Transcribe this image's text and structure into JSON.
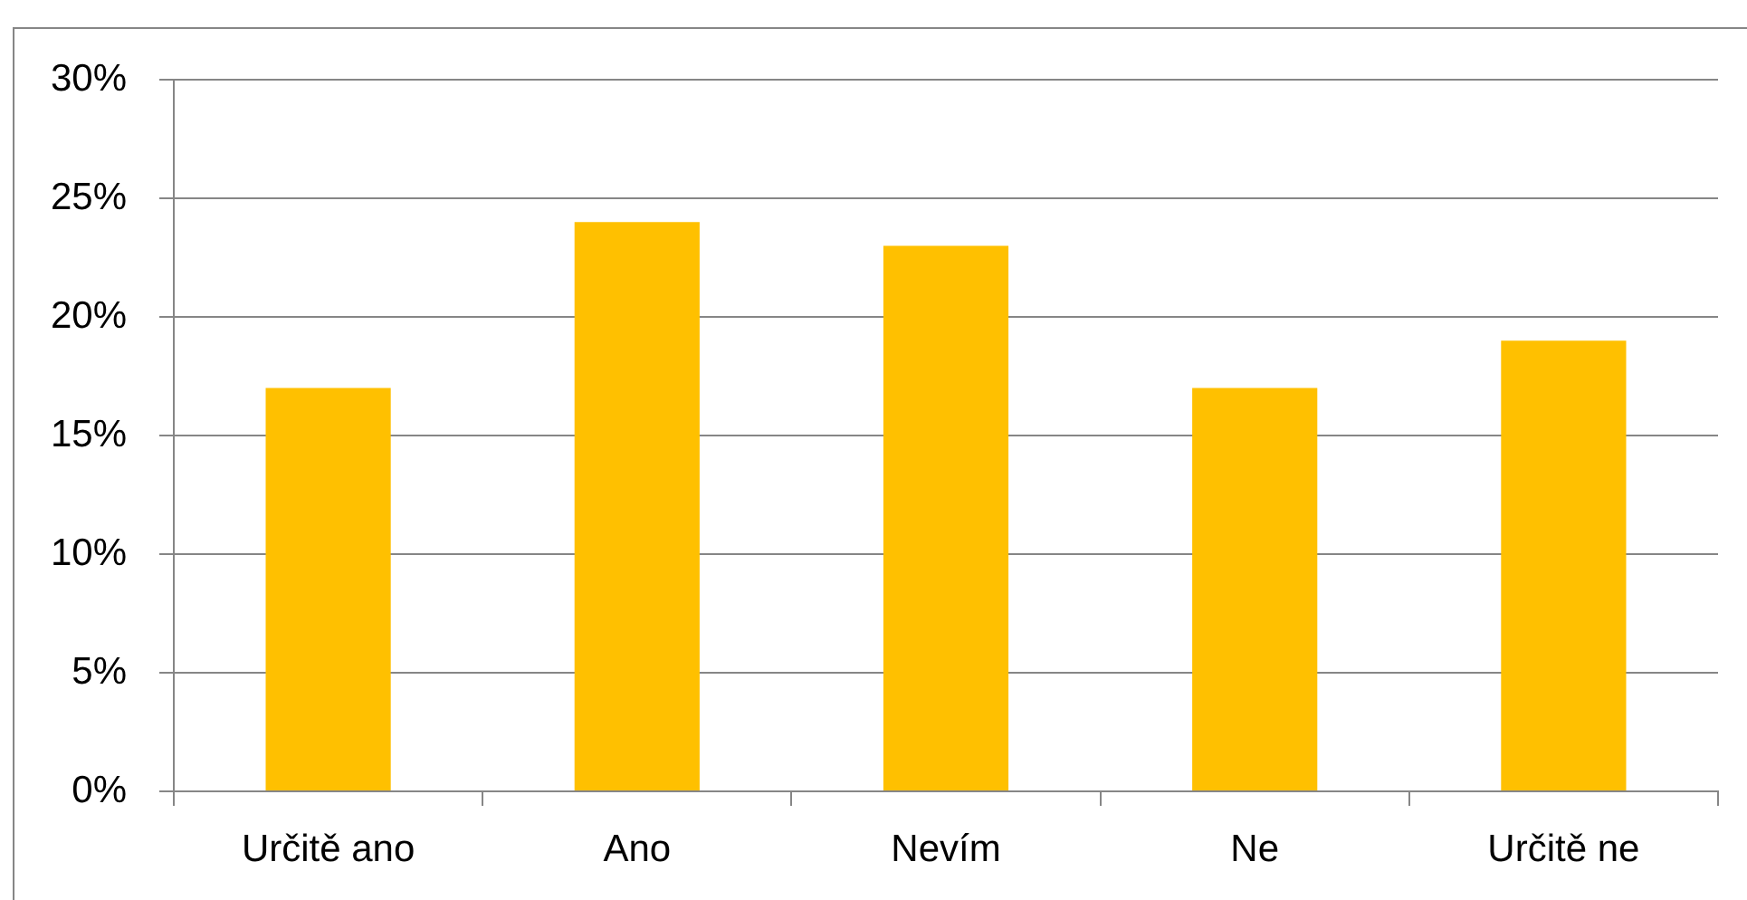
{
  "chart_data": {
    "type": "bar",
    "categories": [
      "Určitě ano",
      "Ano",
      "Nevím",
      "Ne",
      "Určitě ne"
    ],
    "values": [
      17,
      24,
      23,
      17,
      19
    ],
    "color": "#ffc000",
    "ylim": [
      0,
      30
    ],
    "yticks": [
      {
        "value": 0,
        "label": "0%"
      },
      {
        "value": 5,
        "label": "5%"
      },
      {
        "value": 10,
        "label": "10%"
      },
      {
        "value": 15,
        "label": "15%"
      },
      {
        "value": 20,
        "label": "20%"
      },
      {
        "value": 25,
        "label": "25%"
      },
      {
        "value": 30,
        "label": "30%"
      }
    ],
    "grid": "y"
  }
}
